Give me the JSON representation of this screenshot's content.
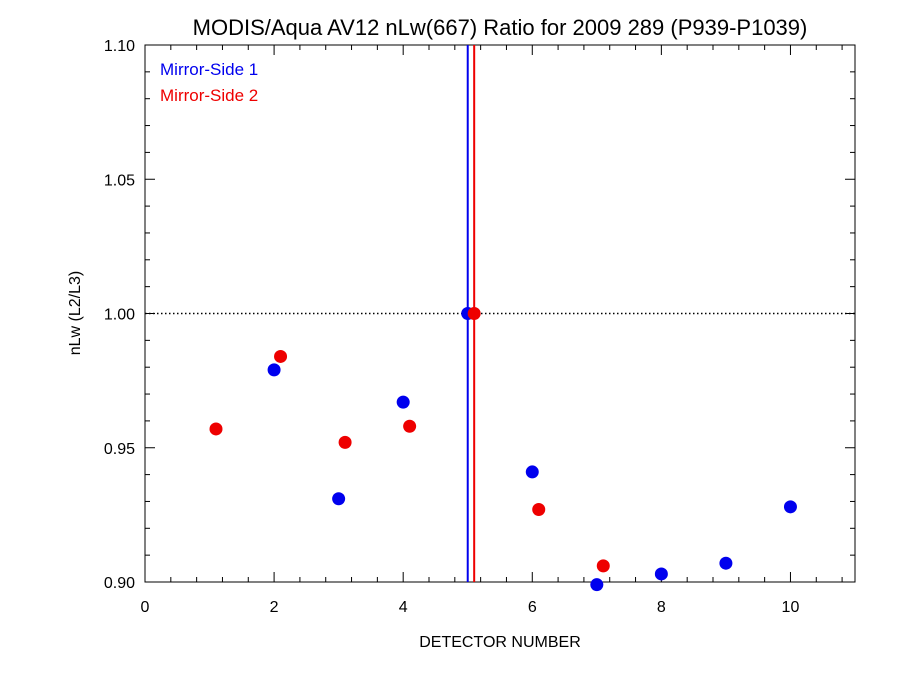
{
  "chart_data": {
    "type": "scatter",
    "title": "MODIS/Aqua AV12 nLw(667) Ratio for 2009 289 (P939-P1039)",
    "xlabel": "DETECTOR NUMBER",
    "ylabel": "nLw (L2/L3)",
    "xlim": [
      0,
      11
    ],
    "ylim": [
      0.9,
      1.1
    ],
    "x_ticks": [
      0,
      2,
      4,
      6,
      8,
      10
    ],
    "x_tick_labels": [
      "0",
      "2",
      "4",
      "6",
      "8",
      "10"
    ],
    "y_ticks": [
      0.9,
      0.95,
      1.0,
      1.05,
      1.1
    ],
    "y_tick_labels": [
      "0.90",
      "0.95",
      "1.00",
      "1.05",
      "1.10"
    ],
    "reference_line": {
      "y": 1.0,
      "style": "dotted"
    },
    "legend_placement": "top-left",
    "series": [
      {
        "name": "Mirror-Side 1",
        "color": "#0000ee",
        "x": [
          2,
          3,
          4,
          5,
          6,
          7,
          8,
          9,
          10
        ],
        "y": [
          0.979,
          0.931,
          0.967,
          1.0,
          0.941,
          0.899,
          0.903,
          0.907,
          0.928
        ],
        "vline_x": 5.0
      },
      {
        "name": "Mirror-Side 2",
        "color": "#ee0000",
        "x": [
          1.1,
          2.1,
          3.1,
          4.1,
          5.1,
          6.1,
          7.1
        ],
        "y": [
          0.957,
          0.984,
          0.952,
          0.958,
          1.0,
          0.927,
          0.906
        ],
        "vline_x": 5.1
      }
    ]
  }
}
